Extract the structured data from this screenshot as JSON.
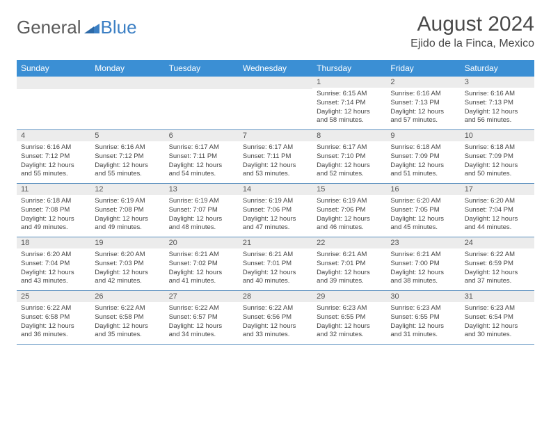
{
  "logo": {
    "part1": "General",
    "part2": "Blue"
  },
  "title": "August 2024",
  "location": "Ejido de la Finca, Mexico",
  "colors": {
    "header_bg": "#3b8fd4",
    "header_text": "#ffffff",
    "daynum_bg": "#ececec",
    "border": "#5a8fbf",
    "text": "#444444",
    "logo_gray": "#5a5a5a",
    "logo_blue": "#3b7fc4",
    "title_text": "#4a4a4a"
  },
  "dayHeaders": [
    "Sunday",
    "Monday",
    "Tuesday",
    "Wednesday",
    "Thursday",
    "Friday",
    "Saturday"
  ],
  "weeks": [
    [
      {
        "blank": true
      },
      {
        "blank": true
      },
      {
        "blank": true
      },
      {
        "blank": true
      },
      {
        "n": "1",
        "sr": "Sunrise: 6:15 AM",
        "ss": "Sunset: 7:14 PM",
        "dl": "Daylight: 12 hours and 58 minutes."
      },
      {
        "n": "2",
        "sr": "Sunrise: 6:16 AM",
        "ss": "Sunset: 7:13 PM",
        "dl": "Daylight: 12 hours and 57 minutes."
      },
      {
        "n": "3",
        "sr": "Sunrise: 6:16 AM",
        "ss": "Sunset: 7:13 PM",
        "dl": "Daylight: 12 hours and 56 minutes."
      }
    ],
    [
      {
        "n": "4",
        "sr": "Sunrise: 6:16 AM",
        "ss": "Sunset: 7:12 PM",
        "dl": "Daylight: 12 hours and 55 minutes."
      },
      {
        "n": "5",
        "sr": "Sunrise: 6:16 AM",
        "ss": "Sunset: 7:12 PM",
        "dl": "Daylight: 12 hours and 55 minutes."
      },
      {
        "n": "6",
        "sr": "Sunrise: 6:17 AM",
        "ss": "Sunset: 7:11 PM",
        "dl": "Daylight: 12 hours and 54 minutes."
      },
      {
        "n": "7",
        "sr": "Sunrise: 6:17 AM",
        "ss": "Sunset: 7:11 PM",
        "dl": "Daylight: 12 hours and 53 minutes."
      },
      {
        "n": "8",
        "sr": "Sunrise: 6:17 AM",
        "ss": "Sunset: 7:10 PM",
        "dl": "Daylight: 12 hours and 52 minutes."
      },
      {
        "n": "9",
        "sr": "Sunrise: 6:18 AM",
        "ss": "Sunset: 7:09 PM",
        "dl": "Daylight: 12 hours and 51 minutes."
      },
      {
        "n": "10",
        "sr": "Sunrise: 6:18 AM",
        "ss": "Sunset: 7:09 PM",
        "dl": "Daylight: 12 hours and 50 minutes."
      }
    ],
    [
      {
        "n": "11",
        "sr": "Sunrise: 6:18 AM",
        "ss": "Sunset: 7:08 PM",
        "dl": "Daylight: 12 hours and 49 minutes."
      },
      {
        "n": "12",
        "sr": "Sunrise: 6:19 AM",
        "ss": "Sunset: 7:08 PM",
        "dl": "Daylight: 12 hours and 49 minutes."
      },
      {
        "n": "13",
        "sr": "Sunrise: 6:19 AM",
        "ss": "Sunset: 7:07 PM",
        "dl": "Daylight: 12 hours and 48 minutes."
      },
      {
        "n": "14",
        "sr": "Sunrise: 6:19 AM",
        "ss": "Sunset: 7:06 PM",
        "dl": "Daylight: 12 hours and 47 minutes."
      },
      {
        "n": "15",
        "sr": "Sunrise: 6:19 AM",
        "ss": "Sunset: 7:06 PM",
        "dl": "Daylight: 12 hours and 46 minutes."
      },
      {
        "n": "16",
        "sr": "Sunrise: 6:20 AM",
        "ss": "Sunset: 7:05 PM",
        "dl": "Daylight: 12 hours and 45 minutes."
      },
      {
        "n": "17",
        "sr": "Sunrise: 6:20 AM",
        "ss": "Sunset: 7:04 PM",
        "dl": "Daylight: 12 hours and 44 minutes."
      }
    ],
    [
      {
        "n": "18",
        "sr": "Sunrise: 6:20 AM",
        "ss": "Sunset: 7:04 PM",
        "dl": "Daylight: 12 hours and 43 minutes."
      },
      {
        "n": "19",
        "sr": "Sunrise: 6:20 AM",
        "ss": "Sunset: 7:03 PM",
        "dl": "Daylight: 12 hours and 42 minutes."
      },
      {
        "n": "20",
        "sr": "Sunrise: 6:21 AM",
        "ss": "Sunset: 7:02 PM",
        "dl": "Daylight: 12 hours and 41 minutes."
      },
      {
        "n": "21",
        "sr": "Sunrise: 6:21 AM",
        "ss": "Sunset: 7:01 PM",
        "dl": "Daylight: 12 hours and 40 minutes."
      },
      {
        "n": "22",
        "sr": "Sunrise: 6:21 AM",
        "ss": "Sunset: 7:01 PM",
        "dl": "Daylight: 12 hours and 39 minutes."
      },
      {
        "n": "23",
        "sr": "Sunrise: 6:21 AM",
        "ss": "Sunset: 7:00 PM",
        "dl": "Daylight: 12 hours and 38 minutes."
      },
      {
        "n": "24",
        "sr": "Sunrise: 6:22 AM",
        "ss": "Sunset: 6:59 PM",
        "dl": "Daylight: 12 hours and 37 minutes."
      }
    ],
    [
      {
        "n": "25",
        "sr": "Sunrise: 6:22 AM",
        "ss": "Sunset: 6:58 PM",
        "dl": "Daylight: 12 hours and 36 minutes."
      },
      {
        "n": "26",
        "sr": "Sunrise: 6:22 AM",
        "ss": "Sunset: 6:58 PM",
        "dl": "Daylight: 12 hours and 35 minutes."
      },
      {
        "n": "27",
        "sr": "Sunrise: 6:22 AM",
        "ss": "Sunset: 6:57 PM",
        "dl": "Daylight: 12 hours and 34 minutes."
      },
      {
        "n": "28",
        "sr": "Sunrise: 6:22 AM",
        "ss": "Sunset: 6:56 PM",
        "dl": "Daylight: 12 hours and 33 minutes."
      },
      {
        "n": "29",
        "sr": "Sunrise: 6:23 AM",
        "ss": "Sunset: 6:55 PM",
        "dl": "Daylight: 12 hours and 32 minutes."
      },
      {
        "n": "30",
        "sr": "Sunrise: 6:23 AM",
        "ss": "Sunset: 6:55 PM",
        "dl": "Daylight: 12 hours and 31 minutes."
      },
      {
        "n": "31",
        "sr": "Sunrise: 6:23 AM",
        "ss": "Sunset: 6:54 PM",
        "dl": "Daylight: 12 hours and 30 minutes."
      }
    ]
  ]
}
